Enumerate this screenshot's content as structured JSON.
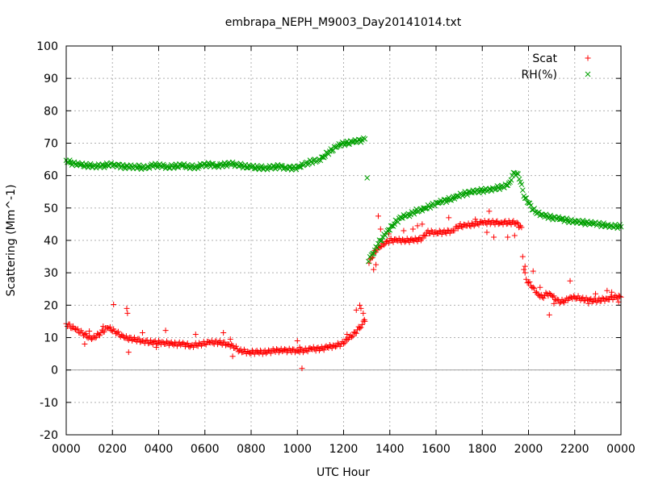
{
  "chart_data": {
    "type": "scatter",
    "title": "embrapa_NEPH_M9003_Day20141014.txt",
    "xlabel": "UTC Hour",
    "ylabel": "Scattering (Mm^-1)",
    "xlim": [
      0,
      2400
    ],
    "ylim": [
      -20,
      100
    ],
    "x_ticks": [
      "0000",
      "0200",
      "0400",
      "0600",
      "0800",
      "1000",
      "1200",
      "1400",
      "1600",
      "1800",
      "2000",
      "2200",
      "0000"
    ],
    "y_ticks": [
      "-20",
      "-10",
      "0",
      "10",
      "20",
      "30",
      "40",
      "50",
      "60",
      "70",
      "80",
      "90",
      "100"
    ],
    "grid": true,
    "zero_line": true,
    "legend_position": "top-right",
    "colors": {
      "Scat": "#ff0000",
      "RH(%)": "#00a000"
    },
    "series": [
      {
        "name": "Scat",
        "marker": "+",
        "points": [
          [
            0,
            14.3
          ],
          [
            40,
            12.5
          ],
          [
            80,
            11
          ],
          [
            110,
            9.5
          ],
          [
            140,
            11
          ],
          [
            180,
            13
          ],
          [
            210,
            12
          ],
          [
            250,
            10
          ],
          [
            290,
            9.5
          ],
          [
            330,
            9
          ],
          [
            370,
            8.5
          ],
          [
            420,
            8.5
          ],
          [
            460,
            8
          ],
          [
            500,
            8
          ],
          [
            540,
            7.5
          ],
          [
            580,
            8
          ],
          [
            620,
            8.5
          ],
          [
            660,
            8.5
          ],
          [
            700,
            8
          ],
          [
            720,
            7.5
          ],
          [
            750,
            6
          ],
          [
            790,
            5.5
          ],
          [
            830,
            5.5
          ],
          [
            870,
            5.5
          ],
          [
            900,
            6
          ],
          [
            940,
            6
          ],
          [
            970,
            6
          ],
          [
            1000,
            6
          ],
          [
            1030,
            6
          ],
          [
            1060,
            6.5
          ],
          [
            1100,
            6.5
          ],
          [
            1130,
            7
          ],
          [
            1160,
            7.5
          ],
          [
            1190,
            8
          ],
          [
            1220,
            9.5
          ],
          [
            1250,
            11.5
          ],
          [
            1280,
            14
          ],
          [
            1292,
            15
          ],
          [
            1310,
            33
          ],
          [
            1320,
            34.5
          ],
          [
            1330,
            36
          ],
          [
            1345,
            37
          ],
          [
            1360,
            38
          ],
          [
            1380,
            39
          ],
          [
            1400,
            40
          ],
          [
            1430,
            40
          ],
          [
            1460,
            40
          ],
          [
            1500,
            40
          ],
          [
            1540,
            40.5
          ],
          [
            1560,
            42.5
          ],
          [
            1600,
            42.5
          ],
          [
            1640,
            42.5
          ],
          [
            1670,
            43
          ],
          [
            1700,
            44.5
          ],
          [
            1730,
            44.5
          ],
          [
            1760,
            45
          ],
          [
            1800,
            45.5
          ],
          [
            1840,
            45.5
          ],
          [
            1880,
            45.5
          ],
          [
            1920,
            45.5
          ],
          [
            1950,
            45.5
          ],
          [
            1970,
            44
          ],
          [
            1980,
            31
          ],
          [
            1990,
            28
          ],
          [
            2000,
            27
          ],
          [
            2020,
            25.5
          ],
          [
            2040,
            23.5
          ],
          [
            2060,
            22.5
          ],
          [
            2080,
            23.5
          ],
          [
            2100,
            23
          ],
          [
            2120,
            21.5
          ],
          [
            2140,
            21
          ],
          [
            2160,
            21.5
          ],
          [
            2180,
            22.5
          ],
          [
            2200,
            22.5
          ],
          [
            2230,
            22
          ],
          [
            2260,
            21.5
          ],
          [
            2300,
            21.5
          ],
          [
            2340,
            22
          ],
          [
            2380,
            22.5
          ],
          [
            2400,
            22.5
          ],
          [
            80,
            8
          ],
          [
            100,
            12
          ],
          [
            160,
            13.5
          ],
          [
            205,
            20.2
          ],
          [
            262,
            19
          ],
          [
            265,
            17.5
          ],
          [
            270,
            5.5
          ],
          [
            330,
            11.5
          ],
          [
            390,
            7
          ],
          [
            430,
            12.2
          ],
          [
            560,
            11
          ],
          [
            680,
            11.5
          ],
          [
            710,
            9.5
          ],
          [
            720,
            4.2
          ],
          [
            1000,
            9
          ],
          [
            1010,
            7
          ],
          [
            1020,
            0.5
          ],
          [
            1290,
            15.5
          ],
          [
            1215,
            11
          ],
          [
            1255,
            18.5
          ],
          [
            1270,
            20
          ],
          [
            1275,
            19
          ],
          [
            1285,
            17.5
          ],
          [
            1330,
            31
          ],
          [
            1340,
            32.5
          ],
          [
            1350,
            47.5
          ],
          [
            1360,
            43.5
          ],
          [
            1395,
            42
          ],
          [
            1460,
            43
          ],
          [
            1500,
            43.5
          ],
          [
            1520,
            44.5
          ],
          [
            1540,
            45
          ],
          [
            1655,
            47
          ],
          [
            1770,
            46.5
          ],
          [
            1820,
            42.5
          ],
          [
            1830,
            49
          ],
          [
            1850,
            41
          ],
          [
            1910,
            41
          ],
          [
            1940,
            41.5
          ],
          [
            1958,
            44
          ],
          [
            1975,
            35
          ],
          [
            1985,
            32
          ],
          [
            2020,
            30.5
          ],
          [
            2050,
            25.5
          ],
          [
            2090,
            17
          ],
          [
            2110,
            20.5
          ],
          [
            2180,
            27.5
          ],
          [
            2260,
            20.5
          ],
          [
            2290,
            23.5
          ],
          [
            2340,
            24.5
          ],
          [
            2360,
            24
          ],
          [
            2390,
            21
          ]
        ]
      },
      {
        "name": "RH(%)",
        "marker": "x",
        "points": [
          [
            0,
            64.7
          ],
          [
            20,
            64
          ],
          [
            40,
            63.5
          ],
          [
            60,
            63.3
          ],
          [
            90,
            63.1
          ],
          [
            120,
            63
          ],
          [
            150,
            62.9
          ],
          [
            170,
            63.1
          ],
          [
            190,
            63.6
          ],
          [
            210,
            63.4
          ],
          [
            240,
            62.8
          ],
          [
            270,
            62.6
          ],
          [
            300,
            62.8
          ],
          [
            330,
            62.5
          ],
          [
            350,
            62.7
          ],
          [
            380,
            63.2
          ],
          [
            410,
            63
          ],
          [
            440,
            62.7
          ],
          [
            470,
            62.9
          ],
          [
            500,
            63.1
          ],
          [
            530,
            62.8
          ],
          [
            560,
            62.6
          ],
          [
            590,
            63.2
          ],
          [
            620,
            63.4
          ],
          [
            650,
            63.1
          ],
          [
            680,
            63.3
          ],
          [
            710,
            63.6
          ],
          [
            740,
            63.4
          ],
          [
            770,
            62.9
          ],
          [
            800,
            62.6
          ],
          [
            830,
            62.5
          ],
          [
            860,
            62.4
          ],
          [
            890,
            62.5
          ],
          [
            920,
            62.8
          ],
          [
            950,
            62.5
          ],
          [
            980,
            62.3
          ],
          [
            1010,
            62.6
          ],
          [
            1030,
            63.4
          ],
          [
            1060,
            64.3
          ],
          [
            1090,
            64.8
          ],
          [
            1110,
            65.7
          ],
          [
            1140,
            67.5
          ],
          [
            1170,
            68.8
          ],
          [
            1190,
            69.7
          ],
          [
            1210,
            70
          ],
          [
            1240,
            70.3
          ],
          [
            1260,
            70.6
          ],
          [
            1280,
            71
          ],
          [
            1292,
            71.3
          ],
          [
            1302,
            59.3
          ],
          [
            1308,
            33.5
          ],
          [
            1320,
            35.5
          ],
          [
            1335,
            37
          ],
          [
            1350,
            39
          ],
          [
            1370,
            41
          ],
          [
            1390,
            43
          ],
          [
            1410,
            44.5
          ],
          [
            1430,
            46
          ],
          [
            1450,
            47
          ],
          [
            1470,
            47.5
          ],
          [
            1490,
            48
          ],
          [
            1510,
            49
          ],
          [
            1530,
            49.5
          ],
          [
            1550,
            50
          ],
          [
            1570,
            50.5
          ],
          [
            1590,
            51
          ],
          [
            1610,
            51.5
          ],
          [
            1630,
            52
          ],
          [
            1650,
            52.5
          ],
          [
            1670,
            53
          ],
          [
            1690,
            53.8
          ],
          [
            1710,
            54.2
          ],
          [
            1730,
            54.5
          ],
          [
            1750,
            54.8
          ],
          [
            1770,
            55
          ],
          [
            1790,
            55.3
          ],
          [
            1810,
            55.5
          ],
          [
            1830,
            55.8
          ],
          [
            1850,
            56
          ],
          [
            1870,
            56.3
          ],
          [
            1890,
            56.5
          ],
          [
            1910,
            57
          ],
          [
            1920,
            58
          ],
          [
            1930,
            60
          ],
          [
            1940,
            60.8
          ],
          [
            1955,
            60.5
          ],
          [
            1965,
            58
          ],
          [
            1975,
            55.5
          ],
          [
            1985,
            53
          ],
          [
            2000,
            51.5
          ],
          [
            2020,
            49.5
          ],
          [
            2040,
            48.5
          ],
          [
            2060,
            48
          ],
          [
            2080,
            47.5
          ],
          [
            2100,
            47
          ],
          [
            2120,
            46.8
          ],
          [
            2140,
            46.5
          ],
          [
            2160,
            46.3
          ],
          [
            2180,
            46
          ],
          [
            2200,
            46
          ],
          [
            2220,
            45.8
          ],
          [
            2240,
            45.5
          ],
          [
            2260,
            45.3
          ],
          [
            2280,
            45.1
          ],
          [
            2300,
            45
          ],
          [
            2320,
            44.8
          ],
          [
            2340,
            44.7
          ],
          [
            2360,
            44.5
          ],
          [
            2380,
            44.4
          ],
          [
            2400,
            44.2
          ]
        ]
      }
    ]
  }
}
